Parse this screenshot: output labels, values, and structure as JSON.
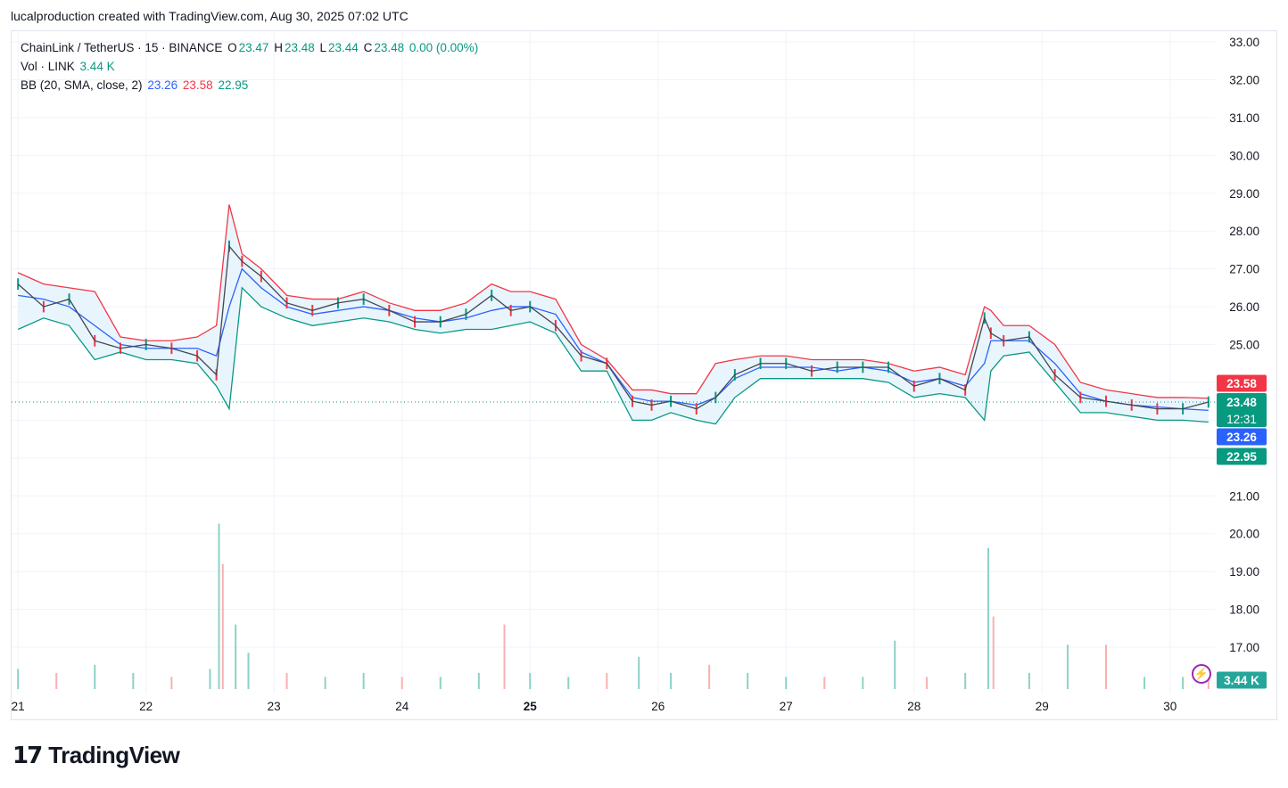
{
  "header": {
    "text": "lucalproduction created with TradingView.com, Aug 30, 2025 07:02 UTC"
  },
  "legend": {
    "symbol": "ChainLink / TetherUS · 15 · BINANCE",
    "o_label": "O",
    "o_value": "23.47",
    "h_label": "H",
    "h_value": "23.48",
    "l_label": "L",
    "l_value": "23.44",
    "c_label": "C",
    "c_value": "23.48",
    "change": "0.00 (0.00%)",
    "vol_label": "Vol · LINK",
    "vol_value": "3.44 K",
    "bb_label": "BB (20, SMA, close, 2)",
    "bb_mid": "23.26",
    "bb_upper": "23.58",
    "bb_lower": "22.95"
  },
  "badges": {
    "upper": "23.58",
    "price": "23.48",
    "countdown": "12:31",
    "mid": "23.26",
    "lower": "22.95",
    "volume": "3.44 K"
  },
  "colors": {
    "up": "#089981",
    "down": "#f23645",
    "mid": "#2962ff",
    "upper_band": "#f23645",
    "lower_band": "#089981",
    "band_fill": "#e3f2fd"
  },
  "logo": {
    "text": "TradingView"
  },
  "chart_data": {
    "type": "line",
    "title": "ChainLink / TetherUS · 15 · BINANCE",
    "xlabel": "",
    "ylabel": "",
    "x_ticks": [
      "21",
      "22",
      "23",
      "24",
      "25",
      "26",
      "27",
      "28",
      "29",
      "30"
    ],
    "x_tick_days": [
      21,
      22,
      23,
      24,
      25,
      26,
      27,
      28,
      29,
      30
    ],
    "y_ticks": [
      "33.00",
      "32.00",
      "31.00",
      "30.00",
      "29.00",
      "28.00",
      "27.00",
      "26.00",
      "25.00",
      "21.00",
      "20.00",
      "19.00",
      "18.00",
      "17.00"
    ],
    "ylim": [
      16.0,
      33.0
    ],
    "x_day_range": [
      20.95,
      30.35
    ],
    "grid": true,
    "price_line": 23.48,
    "series": [
      {
        "name": "close",
        "x": [
          21.0,
          21.2,
          21.4,
          21.6,
          21.8,
          22.0,
          22.2,
          22.4,
          22.55,
          22.65,
          22.75,
          22.9,
          23.1,
          23.3,
          23.5,
          23.7,
          23.9,
          24.1,
          24.3,
          24.5,
          24.7,
          24.85,
          25.0,
          25.2,
          25.4,
          25.6,
          25.8,
          25.95,
          26.1,
          26.3,
          26.45,
          26.6,
          26.8,
          27.0,
          27.2,
          27.4,
          27.6,
          27.8,
          28.0,
          28.2,
          28.4,
          28.55,
          28.6,
          28.7,
          28.9,
          29.1,
          29.3,
          29.5,
          29.7,
          29.9,
          30.1,
          30.3
        ],
        "values": [
          26.6,
          26.0,
          26.2,
          25.1,
          24.9,
          25.0,
          24.9,
          24.7,
          24.2,
          27.6,
          27.2,
          26.8,
          26.1,
          25.9,
          26.1,
          26.2,
          25.9,
          25.6,
          25.6,
          25.8,
          26.3,
          25.9,
          26.0,
          25.5,
          24.7,
          24.5,
          23.5,
          23.4,
          23.5,
          23.3,
          23.6,
          24.2,
          24.5,
          24.5,
          24.3,
          24.4,
          24.4,
          24.4,
          23.9,
          24.1,
          23.8,
          25.7,
          25.3,
          25.1,
          25.2,
          24.2,
          23.6,
          23.5,
          23.4,
          23.3,
          23.3,
          23.48
        ]
      },
      {
        "name": "BB upper",
        "x": [
          21.0,
          21.2,
          21.4,
          21.6,
          21.8,
          22.0,
          22.2,
          22.4,
          22.55,
          22.65,
          22.75,
          22.9,
          23.1,
          23.3,
          23.5,
          23.7,
          23.9,
          24.1,
          24.3,
          24.5,
          24.7,
          24.85,
          25.0,
          25.2,
          25.4,
          25.6,
          25.8,
          25.95,
          26.1,
          26.3,
          26.45,
          26.6,
          26.8,
          27.0,
          27.2,
          27.4,
          27.6,
          27.8,
          28.0,
          28.2,
          28.4,
          28.55,
          28.6,
          28.7,
          28.9,
          29.1,
          29.3,
          29.5,
          29.7,
          29.9,
          30.1,
          30.3
        ],
        "values": [
          26.9,
          26.6,
          26.5,
          26.4,
          25.2,
          25.1,
          25.1,
          25.2,
          25.5,
          28.7,
          27.4,
          27.0,
          26.3,
          26.2,
          26.2,
          26.4,
          26.1,
          25.9,
          25.9,
          26.1,
          26.6,
          26.4,
          26.4,
          26.2,
          25.0,
          24.6,
          23.8,
          23.8,
          23.7,
          23.7,
          24.5,
          24.6,
          24.7,
          24.7,
          24.6,
          24.6,
          24.6,
          24.5,
          24.3,
          24.4,
          24.2,
          26.0,
          25.9,
          25.5,
          25.5,
          25.0,
          24.0,
          23.8,
          23.7,
          23.6,
          23.6,
          23.58
        ]
      },
      {
        "name": "BB basis",
        "x": [
          21.0,
          21.2,
          21.4,
          21.6,
          21.8,
          22.0,
          22.2,
          22.4,
          22.55,
          22.65,
          22.75,
          22.9,
          23.1,
          23.3,
          23.5,
          23.7,
          23.9,
          24.1,
          24.3,
          24.5,
          24.7,
          24.85,
          25.0,
          25.2,
          25.4,
          25.6,
          25.8,
          25.95,
          26.1,
          26.3,
          26.45,
          26.6,
          26.8,
          27.0,
          27.2,
          27.4,
          27.6,
          27.8,
          28.0,
          28.2,
          28.4,
          28.55,
          28.6,
          28.7,
          28.9,
          29.1,
          29.3,
          29.5,
          29.7,
          29.9,
          30.1,
          30.3
        ],
        "values": [
          26.3,
          26.2,
          26.0,
          25.5,
          25.0,
          24.9,
          24.9,
          24.9,
          24.7,
          26.0,
          27.0,
          26.5,
          26.0,
          25.8,
          25.9,
          26.0,
          25.9,
          25.7,
          25.6,
          25.7,
          25.9,
          26.0,
          26.0,
          25.8,
          24.8,
          24.5,
          23.6,
          23.5,
          23.5,
          23.4,
          23.6,
          24.1,
          24.4,
          24.4,
          24.4,
          24.3,
          24.4,
          24.3,
          24.0,
          24.1,
          23.9,
          24.5,
          25.1,
          25.1,
          25.1,
          24.5,
          23.7,
          23.5,
          23.4,
          23.35,
          23.3,
          23.26
        ]
      },
      {
        "name": "BB lower",
        "x": [
          21.0,
          21.2,
          21.4,
          21.6,
          21.8,
          22.0,
          22.2,
          22.4,
          22.55,
          22.65,
          22.75,
          22.9,
          23.1,
          23.3,
          23.5,
          23.7,
          23.9,
          24.1,
          24.3,
          24.5,
          24.7,
          24.85,
          25.0,
          25.2,
          25.4,
          25.6,
          25.8,
          25.95,
          26.1,
          26.3,
          26.45,
          26.6,
          26.8,
          27.0,
          27.2,
          27.4,
          27.6,
          27.8,
          28.0,
          28.2,
          28.4,
          28.55,
          28.6,
          28.7,
          28.9,
          29.1,
          29.3,
          29.5,
          29.7,
          29.9,
          30.1,
          30.3
        ],
        "values": [
          25.4,
          25.7,
          25.5,
          24.6,
          24.8,
          24.6,
          24.6,
          24.5,
          23.9,
          23.3,
          26.5,
          26.0,
          25.7,
          25.5,
          25.6,
          25.7,
          25.6,
          25.4,
          25.3,
          25.4,
          25.4,
          25.5,
          25.6,
          25.3,
          24.3,
          24.3,
          23.0,
          23.0,
          23.2,
          23.0,
          22.9,
          23.6,
          24.1,
          24.1,
          24.1,
          24.1,
          24.1,
          24.0,
          23.6,
          23.7,
          23.6,
          23.0,
          24.3,
          24.7,
          24.8,
          24.0,
          23.2,
          23.2,
          23.1,
          23.0,
          23.0,
          22.95
        ]
      }
    ],
    "volume": {
      "x": [
        21.0,
        21.3,
        21.6,
        21.9,
        22.2,
        22.5,
        22.57,
        22.6,
        22.7,
        22.8,
        23.1,
        23.4,
        23.7,
        24.0,
        24.3,
        24.6,
        24.8,
        25.0,
        25.3,
        25.6,
        25.85,
        26.1,
        26.4,
        26.7,
        27.0,
        27.3,
        27.6,
        27.85,
        28.1,
        28.4,
        28.58,
        28.62,
        28.9,
        29.2,
        29.5,
        29.8,
        30.1,
        30.3
      ],
      "values": [
        0.5,
        0.4,
        0.6,
        0.4,
        0.3,
        0.5,
        4.1,
        3.1,
        1.6,
        0.9,
        0.4,
        0.3,
        0.4,
        0.3,
        0.3,
        0.4,
        1.6,
        0.4,
        0.3,
        0.4,
        0.8,
        0.4,
        0.6,
        0.4,
        0.3,
        0.3,
        0.3,
        1.2,
        0.3,
        0.4,
        3.5,
        1.8,
        0.4,
        1.1,
        1.1,
        0.3,
        0.3,
        0.3
      ]
    }
  }
}
